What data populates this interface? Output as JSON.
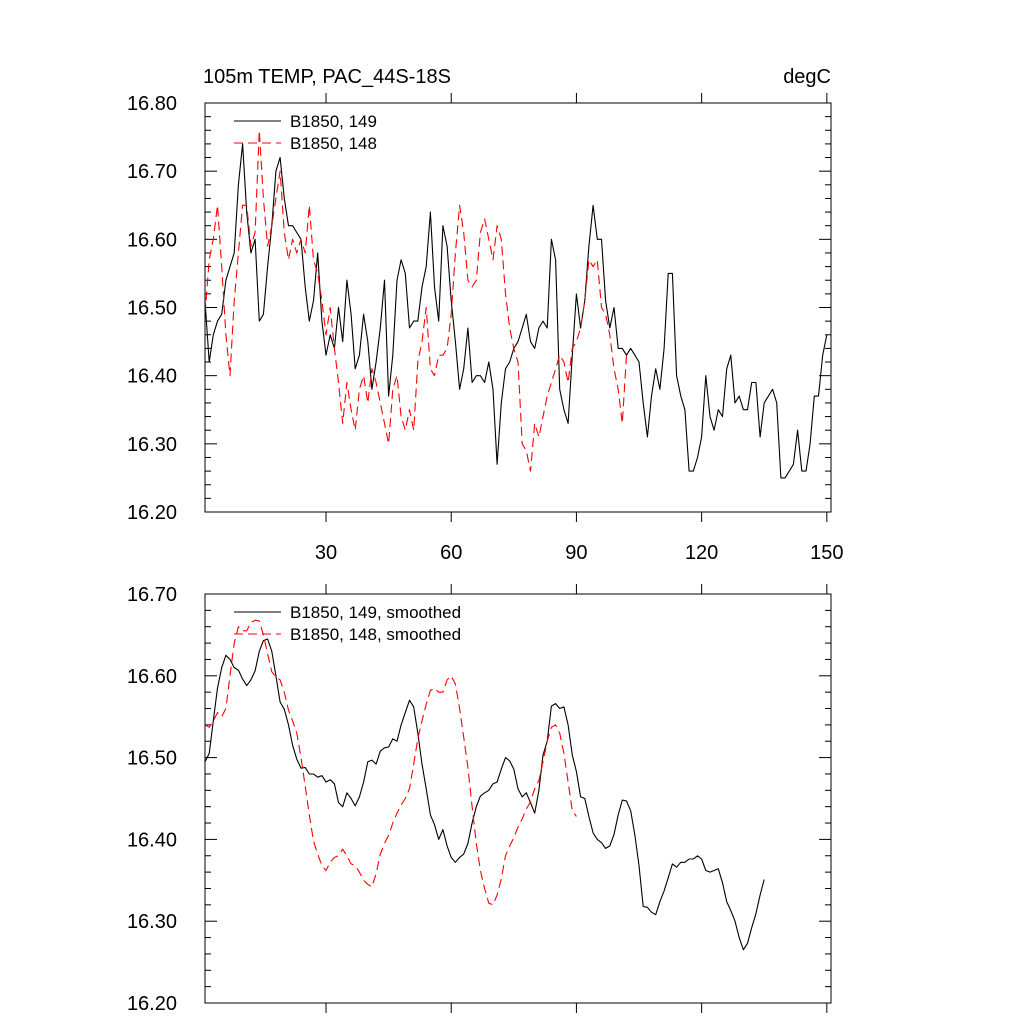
{
  "chart_data": [
    {
      "type": "line",
      "title_left": "105m TEMP, PAC_44S-18S",
      "title_right": "degC",
      "xlim": [
        1,
        151
      ],
      "ylim": [
        16.2,
        16.8
      ],
      "x_ticks": [
        "30",
        "60",
        "90",
        "120",
        "150"
      ],
      "y_ticks": [
        "16.20",
        "16.30",
        "16.40",
        "16.50",
        "16.60",
        "16.70",
        "16.80"
      ],
      "legend_position": "top-left",
      "series": [
        {
          "name": "B1850, 149",
          "color": "#000000",
          "style": "solid",
          "x_start": 1,
          "values": [
            16.51,
            16.42,
            16.46,
            16.48,
            16.49,
            16.54,
            16.56,
            16.58,
            16.68,
            16.74,
            16.64,
            16.58,
            16.6,
            16.48,
            16.49,
            16.56,
            16.62,
            16.7,
            16.72,
            16.66,
            16.62,
            16.62,
            16.61,
            16.6,
            16.53,
            16.48,
            16.51,
            16.58,
            16.48,
            16.43,
            16.46,
            16.44,
            16.5,
            16.45,
            16.54,
            16.49,
            16.41,
            16.43,
            16.49,
            16.45,
            16.38,
            16.42,
            16.47,
            16.54,
            16.37,
            16.43,
            16.54,
            16.57,
            16.55,
            16.47,
            16.48,
            16.48,
            16.53,
            16.56,
            16.64,
            16.53,
            16.48,
            16.62,
            16.59,
            16.51,
            16.45,
            16.38,
            16.41,
            16.47,
            16.39,
            16.4,
            16.4,
            16.39,
            16.42,
            16.38,
            16.27,
            16.36,
            16.41,
            16.42,
            16.44,
            16.45,
            16.47,
            16.49,
            16.45,
            16.44,
            16.47,
            16.48,
            16.47,
            16.6,
            16.57,
            16.38,
            16.35,
            16.33,
            16.43,
            16.52,
            16.47,
            16.51,
            16.59,
            16.65,
            16.6,
            16.6,
            16.51,
            16.47,
            16.5,
            16.44,
            16.44,
            16.43,
            16.44,
            16.43,
            16.42,
            16.36,
            16.31,
            16.37,
            16.41,
            16.38,
            16.44,
            16.55,
            16.55,
            16.4,
            16.37,
            16.35,
            16.26,
            16.26,
            16.28,
            16.31,
            16.4,
            16.34,
            16.32,
            16.35,
            16.34,
            16.41,
            16.43,
            16.36,
            16.37,
            16.35,
            16.35,
            16.39,
            16.39,
            16.31,
            16.36,
            16.37,
            16.38,
            16.36,
            16.25,
            16.25,
            16.26,
            16.27,
            16.32,
            16.26,
            16.26,
            16.3,
            16.37,
            16.37,
            16.43,
            16.46
          ]
        },
        {
          "name": "B1850, 148",
          "color": "#ff0000",
          "style": "dashed",
          "x_start": 1,
          "values": [
            16.49,
            16.57,
            16.6,
            16.65,
            16.56,
            16.46,
            16.4,
            16.51,
            16.58,
            16.65,
            16.65,
            16.59,
            16.61,
            16.76,
            16.66,
            16.59,
            16.62,
            16.66,
            16.7,
            16.61,
            16.57,
            16.6,
            16.58,
            16.6,
            16.58,
            16.65,
            16.57,
            16.55,
            16.51,
            16.46,
            16.5,
            16.44,
            16.39,
            16.33,
            16.39,
            16.35,
            16.32,
            16.38,
            16.4,
            16.36,
            16.41,
            16.39,
            16.36,
            16.33,
            16.3,
            16.38,
            16.4,
            16.34,
            16.32,
            16.35,
            16.32,
            16.42,
            16.45,
            16.5,
            16.41,
            16.4,
            16.43,
            16.43,
            16.44,
            16.49,
            16.58,
            16.65,
            16.61,
            16.54,
            16.53,
            16.54,
            16.61,
            16.63,
            16.6,
            16.57,
            16.62,
            16.6,
            16.52,
            16.47,
            16.44,
            16.42,
            16.3,
            16.29,
            16.26,
            16.33,
            16.31,
            16.34,
            16.37,
            16.39,
            16.41,
            16.43,
            16.42,
            16.39,
            16.44,
            16.45,
            16.47,
            16.51,
            16.57,
            16.56,
            16.57,
            16.5,
            16.49,
            16.46,
            16.41,
            16.38,
            16.33,
            16.43
          ]
        }
      ]
    },
    {
      "type": "line",
      "xlim": [
        1,
        151
      ],
      "ylim": [
        16.2,
        16.7
      ],
      "x_ticks": [],
      "y_ticks": [
        "16.20",
        "16.30",
        "16.40",
        "16.50",
        "16.60",
        "16.70"
      ],
      "legend_position": "top-left",
      "series": [
        {
          "name": "B1850, 149, smoothed",
          "color": "#000000",
          "style": "solid",
          "x_start": 1,
          "values": [
            16.495,
            16.505,
            16.545,
            16.585,
            16.61,
            16.625,
            16.62,
            16.61,
            16.607,
            16.596,
            16.588,
            16.595,
            16.606,
            16.63,
            16.643,
            16.645,
            16.63,
            16.6,
            16.568,
            16.559,
            16.54,
            16.515,
            16.498,
            16.487,
            16.488,
            16.48,
            16.48,
            16.476,
            16.478,
            16.47,
            16.473,
            16.468,
            16.445,
            16.44,
            16.457,
            16.45,
            16.441,
            16.452,
            16.47,
            16.495,
            16.497,
            16.492,
            16.508,
            16.512,
            16.513,
            16.523,
            16.52,
            16.54,
            16.555,
            16.57,
            16.562,
            16.53,
            16.492,
            16.462,
            16.43,
            16.418,
            16.4,
            16.412,
            16.392,
            16.378,
            16.372,
            16.378,
            16.382,
            16.395,
            16.42,
            16.44,
            16.453,
            16.457,
            16.46,
            16.468,
            16.47,
            16.486,
            16.5,
            16.496,
            16.486,
            16.462,
            16.452,
            16.457,
            16.445,
            16.432,
            16.46,
            16.503,
            16.52,
            16.563,
            16.566,
            16.56,
            16.562,
            16.54,
            16.503,
            16.483,
            16.452,
            16.45,
            16.428,
            16.408,
            16.4,
            16.396,
            16.389,
            16.392,
            16.406,
            16.43,
            16.448,
            16.447,
            16.435,
            16.405,
            16.368,
            16.318,
            16.317,
            16.311,
            16.308,
            16.324,
            16.337,
            16.353,
            16.37,
            16.366,
            16.372,
            16.372,
            16.376,
            16.376,
            16.38,
            16.376,
            16.362,
            16.36,
            16.362,
            16.364,
            16.347,
            16.324,
            16.313,
            16.3,
            16.28,
            16.265,
            16.273,
            16.292,
            16.309,
            16.332,
            16.351
          ]
        },
        {
          "name": "B1850, 148, smoothed",
          "color": "#ff0000",
          "style": "dashed",
          "x_start": 1,
          "values": [
            16.54,
            16.537,
            16.545,
            16.555,
            16.55,
            16.56,
            16.6,
            16.64,
            16.66,
            16.655,
            16.655,
            16.665,
            16.668,
            16.667,
            16.65,
            16.627,
            16.605,
            16.598,
            16.595,
            16.58,
            16.558,
            16.545,
            16.53,
            16.5,
            16.465,
            16.43,
            16.398,
            16.382,
            16.368,
            16.362,
            16.372,
            16.378,
            16.38,
            16.388,
            16.38,
            16.37,
            16.368,
            16.36,
            16.35,
            16.345,
            16.342,
            16.358,
            16.382,
            16.395,
            16.405,
            16.42,
            16.432,
            16.442,
            16.45,
            16.462,
            16.492,
            16.523,
            16.545,
            16.565,
            16.582,
            16.585,
            16.58,
            16.58,
            16.595,
            16.6,
            16.59,
            16.56,
            16.525,
            16.488,
            16.44,
            16.395,
            16.362,
            16.34,
            16.322,
            16.32,
            16.332,
            16.352,
            16.38,
            16.392,
            16.402,
            16.415,
            16.425,
            16.437,
            16.446,
            16.462,
            16.472,
            16.495,
            16.52,
            16.537,
            16.54,
            16.53,
            16.505,
            16.47,
            16.435,
            16.428
          ]
        }
      ]
    }
  ]
}
